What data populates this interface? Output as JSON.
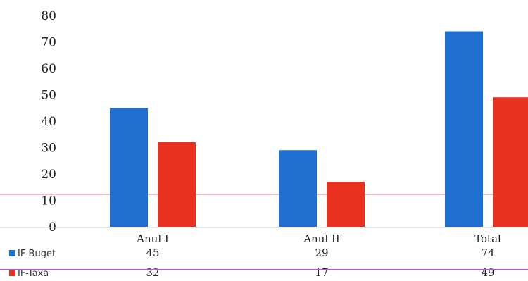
{
  "chart_data": {
    "type": "bar",
    "categories": [
      "Anul I",
      "Anul II",
      "Total"
    ],
    "series": [
      {
        "name": "IF-Buget",
        "values": [
          45,
          29,
          74
        ],
        "color": "#1f6fd0"
      },
      {
        "name": "IF-Taxa",
        "values": [
          32,
          17,
          49
        ],
        "color": "#e8321e"
      }
    ],
    "yticks": [
      0,
      10,
      20,
      30,
      40,
      50,
      60,
      70,
      80
    ],
    "ylim": [
      0,
      80
    ],
    "title": "",
    "xlabel": "",
    "ylabel": "",
    "grid": false,
    "legend": "data-table-below"
  }
}
